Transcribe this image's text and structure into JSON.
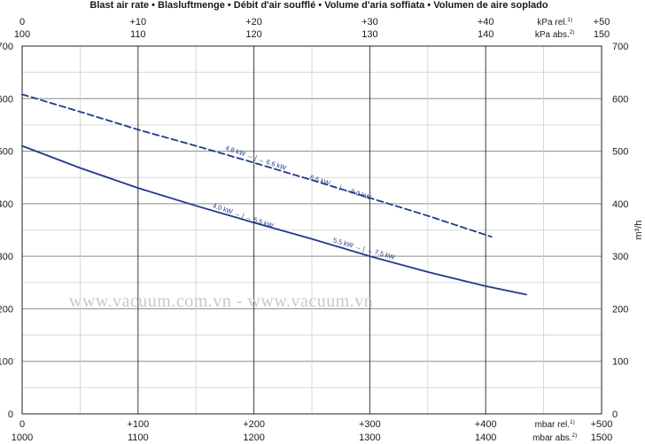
{
  "chart_data": {
    "type": "line",
    "title": "Blast air rate  •  Blasluftmenge  •  Débit d'air soufflé  •  Volume d'aria soffiata  •  Volumen de aire soplado",
    "ylabel": "m³/h",
    "ylim": [
      0,
      700
    ],
    "yticks": [
      "0",
      "100",
      "200",
      "300",
      "400",
      "500",
      "600",
      "700"
    ],
    "xlim": [
      0,
      500
    ],
    "grid": true,
    "axes": {
      "top_rel": {
        "ticks": [
          "0",
          "+10",
          "+20",
          "+30",
          "+40",
          "+50"
        ],
        "unit": "kPa rel.",
        "note": "1)"
      },
      "top_abs": {
        "ticks": [
          "100",
          "110",
          "120",
          "130",
          "140",
          "150"
        ],
        "unit": "kPa abs.",
        "note": "2)"
      },
      "bottom_rel": {
        "ticks": [
          "0",
          "+100",
          "+200",
          "+300",
          "+400",
          "+500"
        ],
        "unit": "mbar rel.",
        "note": "1)"
      },
      "bottom_abs": {
        "ticks": [
          "1000",
          "1100",
          "1200",
          "1300",
          "1400",
          "1500"
        ],
        "unit": "mbar abs.",
        "note": "2)"
      }
    },
    "series": [
      {
        "style": "dashed",
        "color": "#1f3a8a",
        "x": [
          0,
          50,
          100,
          150,
          200,
          250,
          300,
          350,
          405
        ],
        "y": [
          608,
          575,
          541,
          510,
          478,
          445,
          411,
          377,
          337
        ]
      },
      {
        "style": "solid",
        "color": "#1f3a8a",
        "x": [
          0,
          50,
          100,
          150,
          200,
          250,
          300,
          350,
          400,
          435
        ],
        "y": [
          510,
          468,
          430,
          396,
          364,
          333,
          300,
          270,
          243,
          227
        ]
      }
    ],
    "annotations": [
      {
        "text": "4.8 kW → | → 6.6 kW",
        "x": 175,
        "y": 503,
        "rotate": 19
      },
      {
        "text": "6.6 kW → | → 9.0 kW",
        "x": 248,
        "y": 447,
        "rotate": 19
      },
      {
        "text": "4.0 kW → | → 5.5 kW",
        "x": 164,
        "y": 393,
        "rotate": 19
      },
      {
        "text": "5.5 kW → | → 7.5 kW",
        "x": 268,
        "y": 327,
        "rotate": 16
      }
    ]
  },
  "watermark": "www.vacuum.com.vn - www.vacuum.vn"
}
